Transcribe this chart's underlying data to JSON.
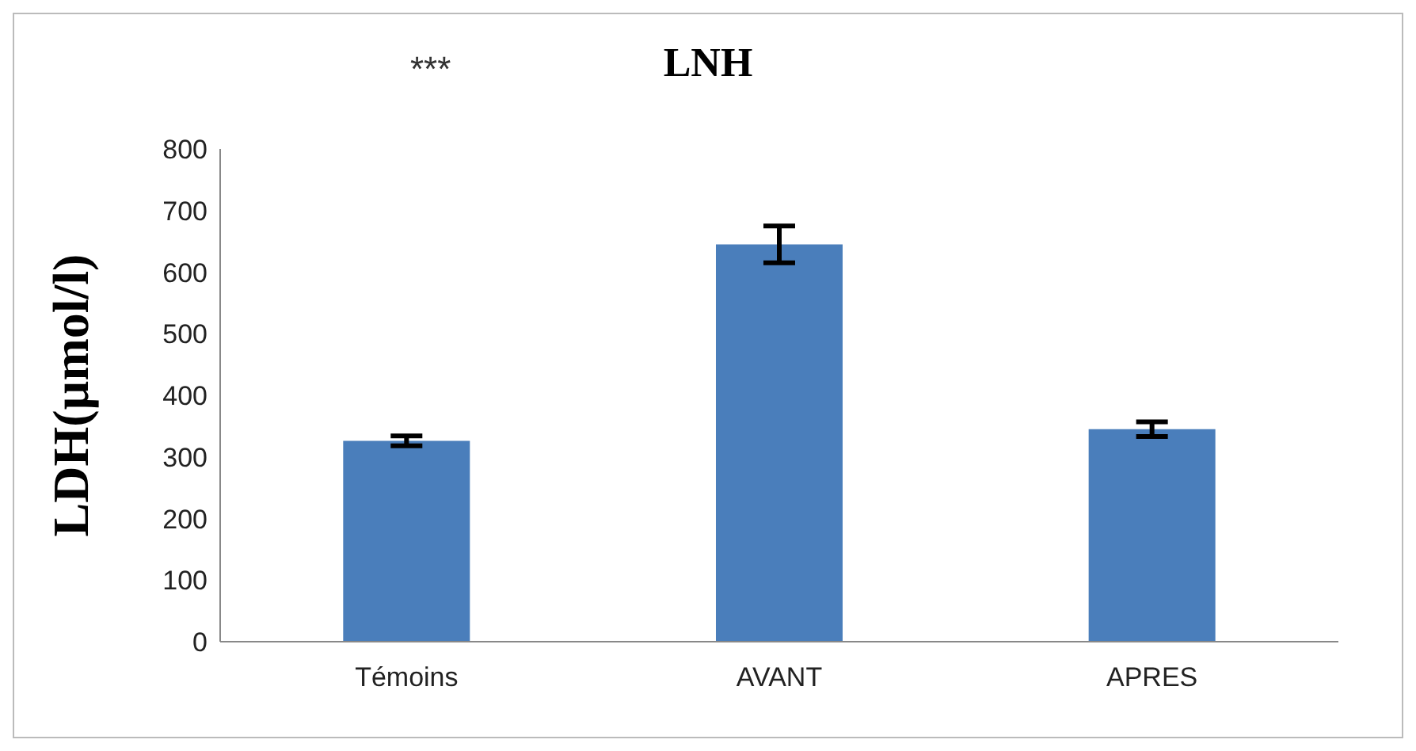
{
  "chart_data": {
    "type": "bar",
    "title": "LNH",
    "ylabel": "LDH(µmol/l)",
    "categories": [
      "Témoins",
      "AVANT",
      "APRES"
    ],
    "values": [
      326,
      645,
      345
    ],
    "errors": [
      8,
      30,
      12
    ],
    "color": "#4a7ebb",
    "ylim": [
      0,
      800
    ],
    "yticks": [
      0,
      100,
      200,
      300,
      400,
      500,
      600,
      700,
      800
    ],
    "grid": false,
    "legend": false,
    "annotations": [
      "***"
    ]
  }
}
